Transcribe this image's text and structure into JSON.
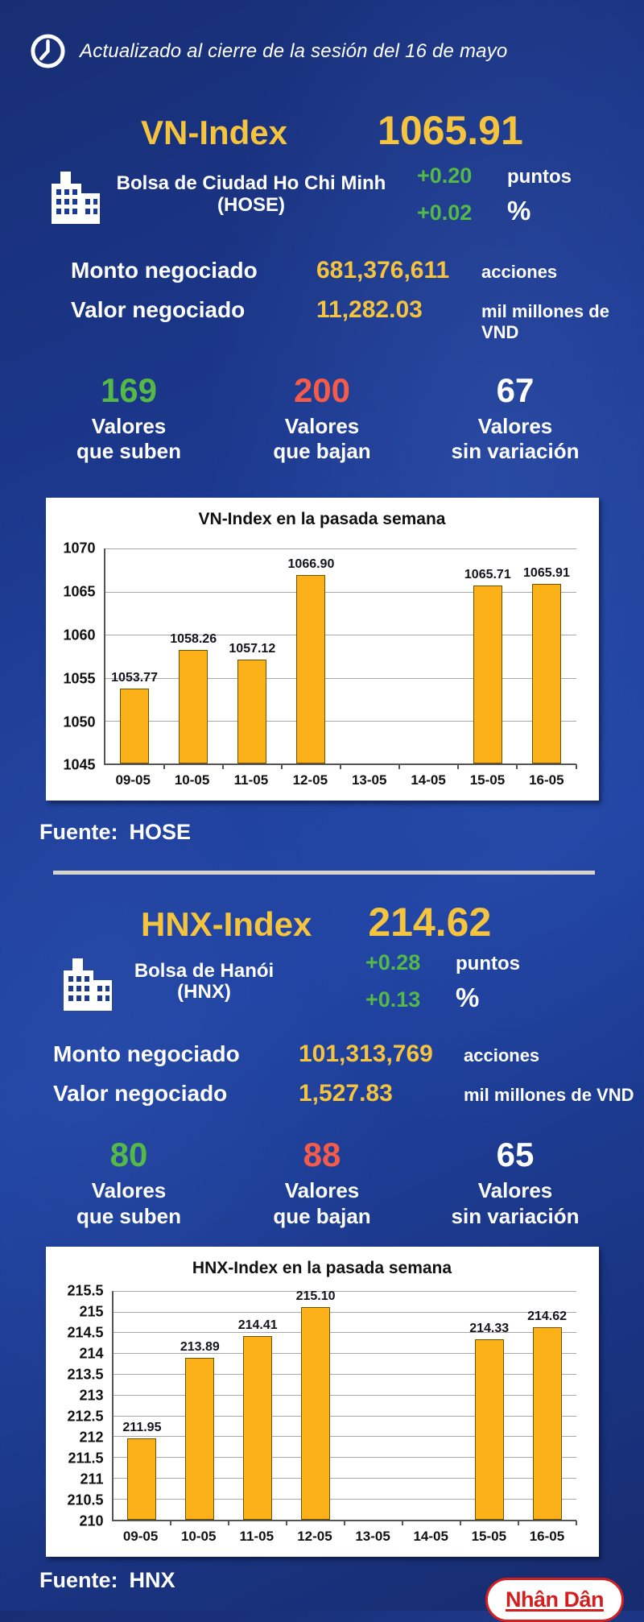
{
  "header": {
    "updated_text": "Actualizado al cierre de la sesión del 16 de mayo"
  },
  "colors": {
    "yellow": "#F5C43E",
    "green": "#55B947",
    "red": "#F45B49",
    "bar": "#FBB117",
    "bar_border": "#6d5200",
    "grid": "#A8A8A8",
    "divider": "#D8D4CB",
    "logo_red": "#D31F1F",
    "background": "#1C3A92"
  },
  "vn": {
    "index_name": "VN-Index",
    "index_value": "1065.91",
    "exchange_line1": "Bolsa de Ciudad Ho Chi Minh",
    "exchange_line2": "(HOSE)",
    "change_points": "+0.20",
    "points_label": "puntos",
    "change_percent": "+0.02",
    "percent_label": "%",
    "volume_label": "Monto negociado",
    "volume_value": "681,376,611",
    "volume_unit": "acciones",
    "value_label": "Valor negociado",
    "value_value": "11,282.03",
    "value_unit": "mil millones de VND",
    "advancers": {
      "count": "169",
      "line1": "Valores",
      "line2": "que suben"
    },
    "decliners": {
      "count": "200",
      "line1": "Valores",
      "line2": "que bajan"
    },
    "unchanged": {
      "count": "67",
      "line1": "Valores",
      "line2": "sin variación"
    },
    "source_label": "Fuente:",
    "source_value": "HOSE"
  },
  "hnx": {
    "index_name": "HNX-Index",
    "index_value": "214.62",
    "exchange_line1": "Bolsa de Hanói",
    "exchange_line2": "(HNX)",
    "change_points": "+0.28",
    "points_label": "puntos",
    "change_percent": "+0.13",
    "percent_label": "%",
    "volume_label": "Monto negociado",
    "volume_value": "101,313,769",
    "volume_unit": "acciones",
    "value_label": "Valor negociado",
    "value_value": "1,527.83",
    "value_unit": "mil millones de VND",
    "advancers": {
      "count": "80",
      "line1": "Valores",
      "line2": "que suben"
    },
    "decliners": {
      "count": "88",
      "line1": "Valores",
      "line2": "que bajan"
    },
    "unchanged": {
      "count": "65",
      "line1": "Valores",
      "line2": "sin variación"
    },
    "source_label": "Fuente:",
    "source_value": "HNX"
  },
  "chart_data": [
    {
      "type": "bar",
      "title": "VN-Index en la pasada semana",
      "categories": [
        "09-05",
        "10-05",
        "11-05",
        "12-05",
        "13-05",
        "14-05",
        "15-05",
        "16-05"
      ],
      "values": [
        1053.77,
        1058.26,
        1057.12,
        1066.9,
        null,
        null,
        1065.71,
        1065.91
      ],
      "labels": [
        "1053.77",
        "1058.26",
        "1057.12",
        "1066.90",
        "",
        "",
        "1065.71",
        "1065.91"
      ],
      "xlabel": "",
      "ylabel": "",
      "ylim": [
        1045,
        1070
      ],
      "yticks": [
        1070,
        1065,
        1060,
        1055,
        1050,
        1045
      ],
      "grid": true,
      "legend": "none",
      "bar_color": "#FBB117"
    },
    {
      "type": "bar",
      "title": "HNX-Index en la pasada semana",
      "categories": [
        "09-05",
        "10-05",
        "11-05",
        "12-05",
        "13-05",
        "14-05",
        "15-05",
        "16-05"
      ],
      "values": [
        211.95,
        213.89,
        214.41,
        215.1,
        null,
        null,
        214.33,
        214.62
      ],
      "labels": [
        "211.95",
        "213.89",
        "214.41",
        "215.10",
        "",
        "",
        "214.33",
        "214.62"
      ],
      "xlabel": "",
      "ylabel": "",
      "ylim": [
        210,
        215.5
      ],
      "yticks": [
        215.5,
        215,
        214.5,
        214,
        213.5,
        213,
        212.5,
        212,
        211.5,
        211,
        210.5,
        210
      ],
      "grid": true,
      "legend": "none",
      "bar_color": "#FBB117"
    }
  ],
  "logo": {
    "text": "Nhân Dân"
  }
}
